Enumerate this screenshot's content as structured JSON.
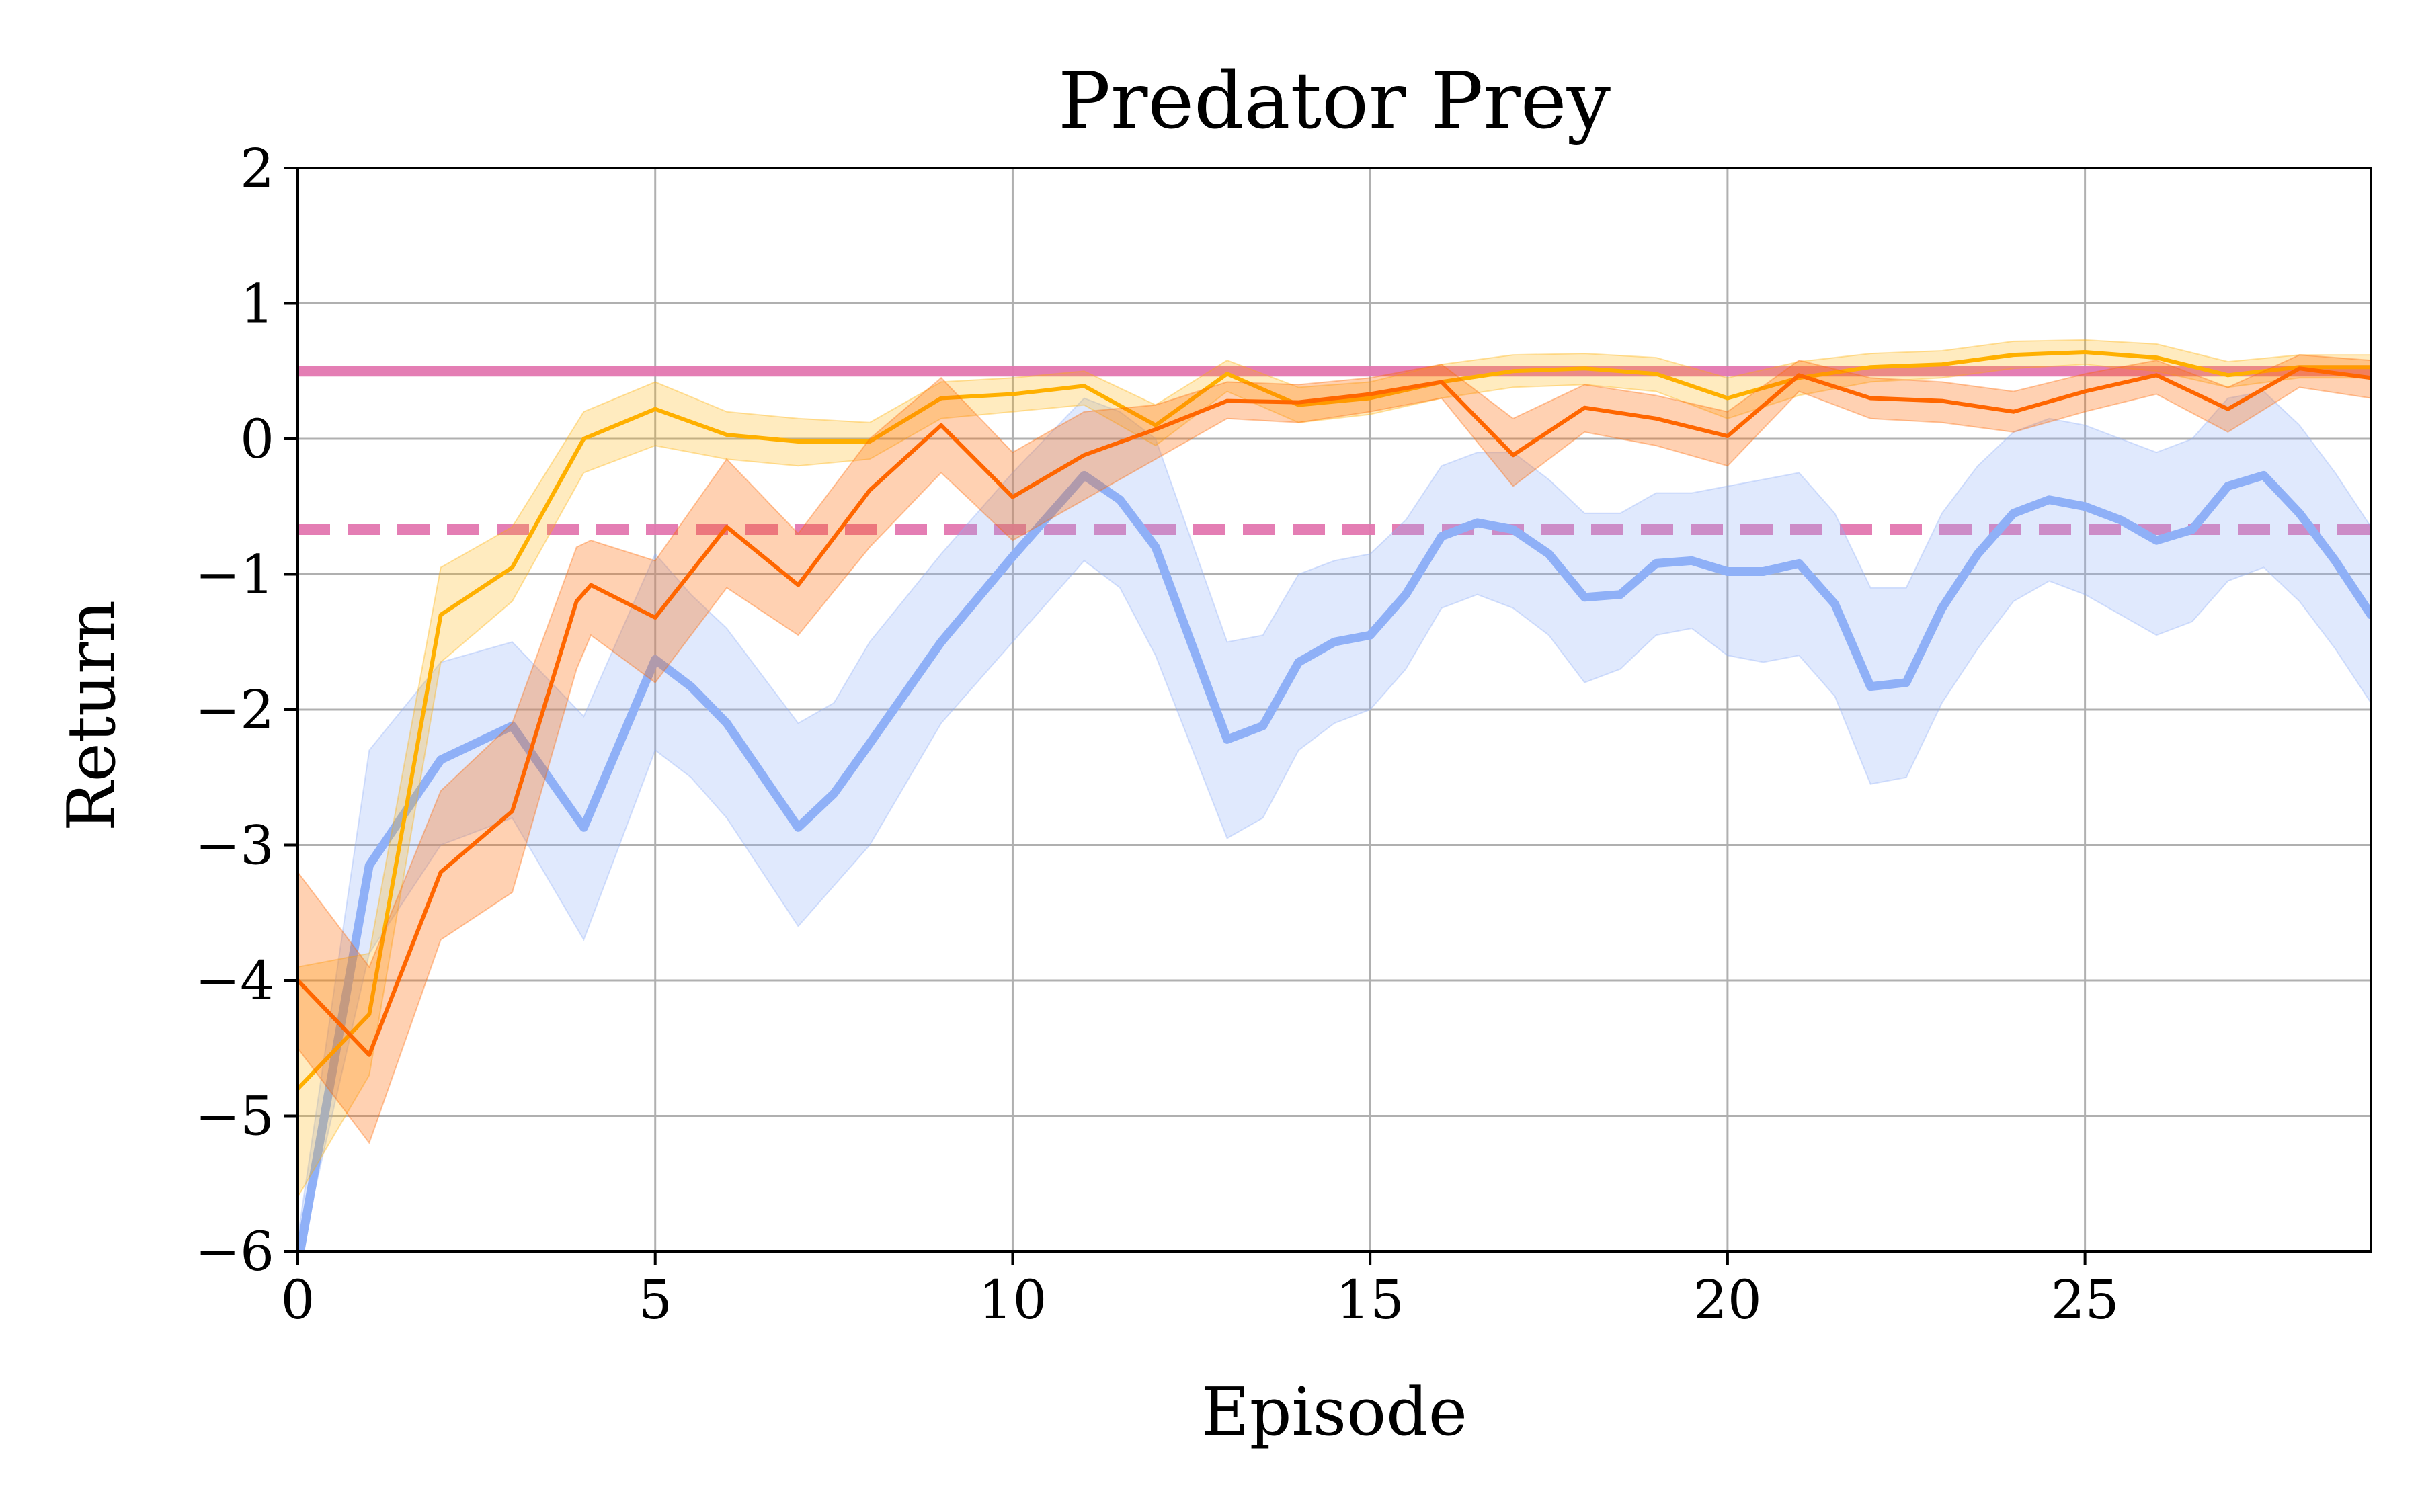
{
  "chart_data": {
    "type": "line",
    "title": "Predator Prey",
    "xlabel": "Episode",
    "ylabel": "Return",
    "xlim": [
      0,
      29
    ],
    "ylim": [
      -6,
      2
    ],
    "xticks": [
      0,
      5,
      10,
      15,
      20,
      25
    ],
    "yticks": [
      -6,
      -5,
      -4,
      -3,
      -2,
      -1,
      0,
      1,
      2
    ],
    "ytick_labels": [
      "−6",
      "−5",
      "−4",
      "−3",
      "−2",
      "−1",
      "0",
      "1",
      "2"
    ],
    "grid": true,
    "legend": "none",
    "hlines": [
      {
        "y": 0.5,
        "color": "#e377b0",
        "style": "solid"
      },
      {
        "y": -0.67,
        "color": "#e377b0",
        "style": "dashed"
      }
    ],
    "series": [
      {
        "name": "blue",
        "color": "#8fb0f7",
        "x": [
          0,
          1,
          2,
          3,
          4,
          5,
          5.5,
          6,
          7,
          7.5,
          8,
          9,
          10,
          11,
          11.5,
          12,
          13,
          13.5,
          14,
          14.5,
          15,
          15.5,
          16,
          16.5,
          17,
          17.5,
          18,
          18.5,
          19,
          19.5,
          20,
          20.5,
          21,
          21.5,
          22,
          22.5,
          23,
          23.5,
          24,
          24.5,
          25,
          25.5,
          26,
          26.5,
          27,
          27.5,
          28,
          28.5,
          29
        ],
        "values": [
          -6.1,
          -3.15,
          -2.37,
          -2.12,
          -2.87,
          -1.63,
          -1.83,
          -2.1,
          -2.87,
          -2.62,
          -2.25,
          -1.5,
          -0.87,
          -0.27,
          -0.45,
          -0.8,
          -2.22,
          -2.12,
          -1.65,
          -1.5,
          -1.45,
          -1.15,
          -0.72,
          -0.62,
          -0.67,
          -0.85,
          -1.17,
          -1.15,
          -0.92,
          -0.9,
          -0.98,
          -0.98,
          -0.92,
          -1.22,
          -1.83,
          -1.8,
          -1.25,
          -0.85,
          -0.55,
          -0.45,
          -0.5,
          -0.6,
          -0.75,
          -0.67,
          -0.35,
          -0.27,
          -0.55,
          -0.9,
          -1.3
        ],
        "lower": [
          -6.1,
          -3.8,
          -3.0,
          -2.8,
          -3.7,
          -2.3,
          -2.5,
          -2.8,
          -3.6,
          -3.3,
          -3.0,
          -2.1,
          -1.5,
          -0.9,
          -1.1,
          -1.6,
          -2.95,
          -2.8,
          -2.3,
          -2.1,
          -2.0,
          -1.7,
          -1.25,
          -1.15,
          -1.25,
          -1.45,
          -1.8,
          -1.7,
          -1.45,
          -1.4,
          -1.6,
          -1.65,
          -1.6,
          -1.9,
          -2.55,
          -2.5,
          -1.95,
          -1.55,
          -1.2,
          -1.05,
          -1.15,
          -1.3,
          -1.45,
          -1.35,
          -1.05,
          -0.95,
          -1.2,
          -1.55,
          -1.95
        ],
        "upper": [
          -5.9,
          -2.3,
          -1.65,
          -1.5,
          -2.05,
          -0.85,
          -1.15,
          -1.4,
          -2.1,
          -1.95,
          -1.5,
          -0.85,
          -0.25,
          0.3,
          0.2,
          0.0,
          -1.5,
          -1.45,
          -1.0,
          -0.9,
          -0.85,
          -0.6,
          -0.2,
          -0.1,
          -0.1,
          -0.3,
          -0.55,
          -0.55,
          -0.4,
          -0.4,
          -0.35,
          -0.3,
          -0.25,
          -0.55,
          -1.1,
          -1.1,
          -0.55,
          -0.2,
          0.05,
          0.15,
          0.1,
          0.0,
          -0.1,
          0.0,
          0.3,
          0.35,
          0.1,
          -0.25,
          -0.65
        ]
      },
      {
        "name": "yellow",
        "color": "#ffb000",
        "x": [
          0,
          1,
          2,
          3,
          4,
          5,
          6,
          7,
          8,
          9,
          10,
          11,
          12,
          13,
          14,
          15,
          16,
          17,
          18,
          19,
          20,
          21,
          22,
          23,
          24,
          25,
          26,
          27,
          28,
          29
        ],
        "values": [
          -4.8,
          -4.25,
          -1.3,
          -0.95,
          0.0,
          0.22,
          0.03,
          -0.02,
          -0.02,
          0.3,
          0.33,
          0.39,
          0.1,
          0.48,
          0.25,
          0.3,
          0.42,
          0.5,
          0.52,
          0.48,
          0.3,
          0.45,
          0.53,
          0.55,
          0.62,
          0.64,
          0.6,
          0.47,
          0.53,
          0.53
        ],
        "lower": [
          -5.6,
          -4.7,
          -1.65,
          -1.2,
          -0.25,
          -0.05,
          -0.15,
          -0.2,
          -0.15,
          0.15,
          0.2,
          0.25,
          -0.05,
          0.35,
          0.12,
          0.18,
          0.3,
          0.38,
          0.4,
          0.35,
          0.15,
          0.32,
          0.42,
          0.45,
          0.52,
          0.55,
          0.5,
          0.38,
          0.45,
          0.45
        ],
        "upper": [
          -3.9,
          -3.8,
          -0.95,
          -0.65,
          0.2,
          0.42,
          0.2,
          0.15,
          0.12,
          0.42,
          0.45,
          0.5,
          0.25,
          0.58,
          0.38,
          0.42,
          0.55,
          0.62,
          0.63,
          0.6,
          0.45,
          0.57,
          0.63,
          0.65,
          0.72,
          0.73,
          0.7,
          0.57,
          0.62,
          0.62
        ]
      },
      {
        "name": "orange",
        "color": "#ff6600",
        "x": [
          0,
          1,
          2,
          3,
          3.9,
          4.1,
          5,
          6,
          7,
          8,
          9,
          10,
          11,
          12,
          13,
          14,
          15,
          16,
          17,
          18,
          19,
          20,
          21,
          22,
          23,
          24,
          25,
          26,
          27,
          28,
          29
        ],
        "values": [
          -4.0,
          -4.55,
          -3.2,
          -2.75,
          -1.2,
          -1.08,
          -1.32,
          -0.65,
          -1.08,
          -0.38,
          0.1,
          -0.43,
          -0.12,
          0.07,
          0.28,
          0.27,
          0.33,
          0.42,
          -0.12,
          0.23,
          0.15,
          0.02,
          0.47,
          0.3,
          0.28,
          0.2,
          0.35,
          0.47,
          0.22,
          0.52,
          0.45
        ],
        "lower": [
          -4.5,
          -5.2,
          -3.7,
          -3.35,
          -1.7,
          -1.45,
          -1.8,
          -1.1,
          -1.45,
          -0.8,
          -0.25,
          -0.75,
          -0.45,
          -0.15,
          0.15,
          0.12,
          0.2,
          0.3,
          -0.35,
          0.05,
          -0.05,
          -0.2,
          0.35,
          0.15,
          0.12,
          0.05,
          0.2,
          0.33,
          0.05,
          0.38,
          0.3
        ],
        "upper": [
          -3.2,
          -3.9,
          -2.6,
          -2.1,
          -0.8,
          -0.75,
          -0.9,
          -0.15,
          -0.7,
          0.0,
          0.45,
          -0.1,
          0.2,
          0.25,
          0.42,
          0.4,
          0.45,
          0.55,
          0.15,
          0.4,
          0.32,
          0.2,
          0.58,
          0.45,
          0.42,
          0.35,
          0.48,
          0.58,
          0.38,
          0.62,
          0.58
        ]
      }
    ]
  }
}
